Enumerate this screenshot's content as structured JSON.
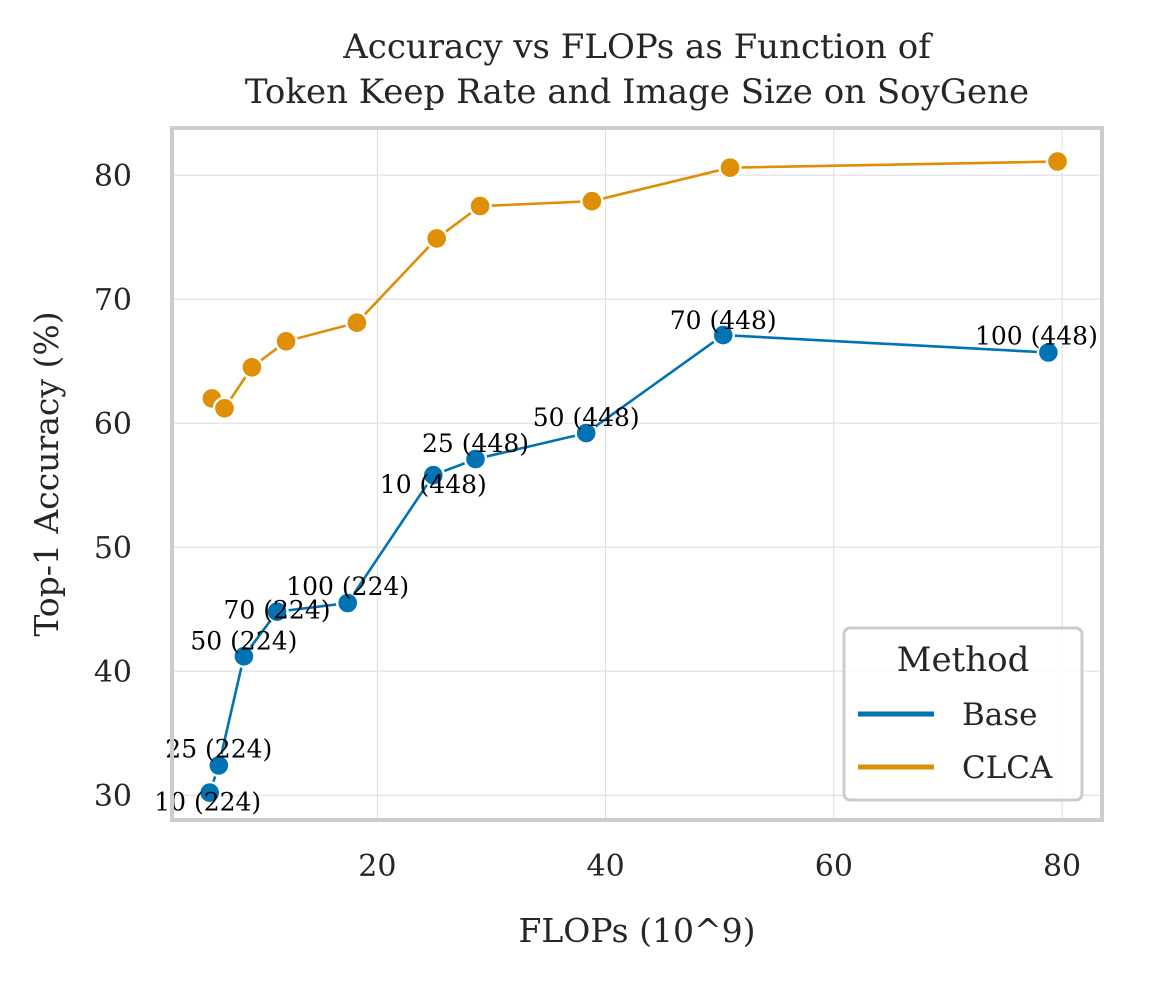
{
  "chart_data": {
    "type": "line",
    "title": "Accuracy vs FLOPs as Function of\nToken Keep Rate and Image Size on SoyGene",
    "title_lines": [
      "Accuracy vs FLOPs as Function of",
      "Token Keep Rate and Image Size on SoyGene"
    ],
    "xlabel": "FLOPs (10^9)",
    "ylabel": "Top-1 Accuracy (%)",
    "xlim": [
      2.0,
      83.5
    ],
    "ylim": [
      28.0,
      83.8
    ],
    "xticks": [
      20,
      40,
      60,
      80
    ],
    "yticks": [
      30,
      40,
      50,
      60,
      70,
      80
    ],
    "grid": true,
    "legend": {
      "title": "Method",
      "placement": "bottom-right",
      "entries": [
        "Base",
        "CLCA"
      ]
    },
    "series": [
      {
        "name": "Base",
        "color": "#0173b2",
        "points": [
          {
            "x": 5.3,
            "y": 30.2,
            "label": "10 (224)"
          },
          {
            "x": 6.1,
            "y": 32.4,
            "label": "25 (224)"
          },
          {
            "x": 8.3,
            "y": 41.2,
            "label": "50 (224)"
          },
          {
            "x": 11.2,
            "y": 44.8,
            "label": "70 (224)"
          },
          {
            "x": 17.4,
            "y": 45.5,
            "label": "100 (224)"
          },
          {
            "x": 24.9,
            "y": 55.8,
            "label": "10 (448)"
          },
          {
            "x": 28.6,
            "y": 57.1,
            "label": "25 (448)"
          },
          {
            "x": 38.3,
            "y": 59.2,
            "label": "50 (448)"
          },
          {
            "x": 50.3,
            "y": 67.1,
            "label": "70 (448)"
          },
          {
            "x": 78.8,
            "y": 65.7,
            "label": "100 (448)"
          }
        ]
      },
      {
        "name": "CLCA",
        "color": "#de8f05",
        "points": [
          {
            "x": 5.5,
            "y": 62.0
          },
          {
            "x": 6.6,
            "y": 61.2
          },
          {
            "x": 9.0,
            "y": 64.5
          },
          {
            "x": 12.0,
            "y": 66.6
          },
          {
            "x": 18.2,
            "y": 68.1
          },
          {
            "x": 25.2,
            "y": 74.9
          },
          {
            "x": 29.0,
            "y": 77.5
          },
          {
            "x": 38.8,
            "y": 77.9
          },
          {
            "x": 50.9,
            "y": 80.6
          },
          {
            "x": 79.6,
            "y": 81.1
          }
        ]
      }
    ]
  }
}
